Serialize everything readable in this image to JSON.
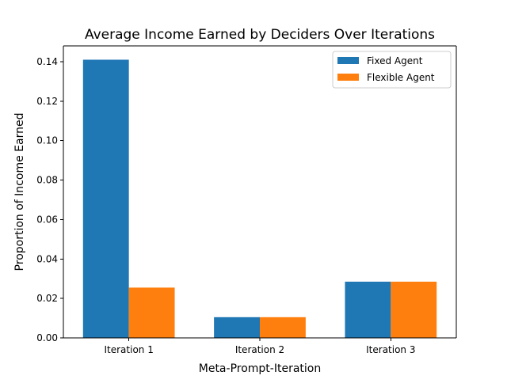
{
  "chart_data": {
    "type": "bar",
    "title": "Average Income Earned by Deciders Over Iterations",
    "xlabel": "Meta-Prompt-Iteration",
    "ylabel": "Proportion of Income Earned",
    "categories": [
      "Iteration 1",
      "Iteration 2",
      "Iteration 3"
    ],
    "series": [
      {
        "name": "Fixed Agent",
        "values": [
          0.141,
          0.0105,
          0.0285
        ],
        "color": "#1f77b4"
      },
      {
        "name": "Flexible Agent",
        "values": [
          0.0255,
          0.0105,
          0.0285
        ],
        "color": "#ff7f0e"
      }
    ],
    "ylim": [
      0,
      0.148
    ],
    "yticks": [
      "0.00",
      "0.02",
      "0.04",
      "0.06",
      "0.08",
      "0.10",
      "0.12",
      "0.14"
    ],
    "grid": false,
    "legend_position": "top-right"
  }
}
